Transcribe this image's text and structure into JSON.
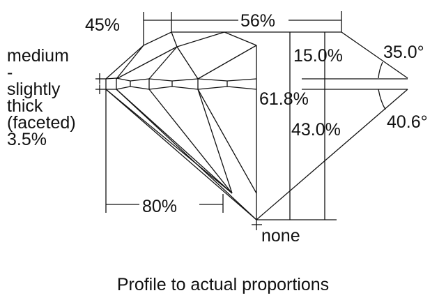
{
  "labels": {
    "lower_half_length": "45%",
    "table": "56%",
    "crown_height": "15.0%",
    "crown_angle": "35.0°",
    "total_depth": "61.8%",
    "pavilion_depth": "43.0%",
    "pavilion_angle": "40.6°",
    "lower_girdle": "80%",
    "culet": "none"
  },
  "girdle": {
    "lines": [
      "medium",
      "-",
      "slightly",
      "thick",
      "(faceted)",
      "3.5%"
    ]
  },
  "caption": "Profile to actual proportions"
}
